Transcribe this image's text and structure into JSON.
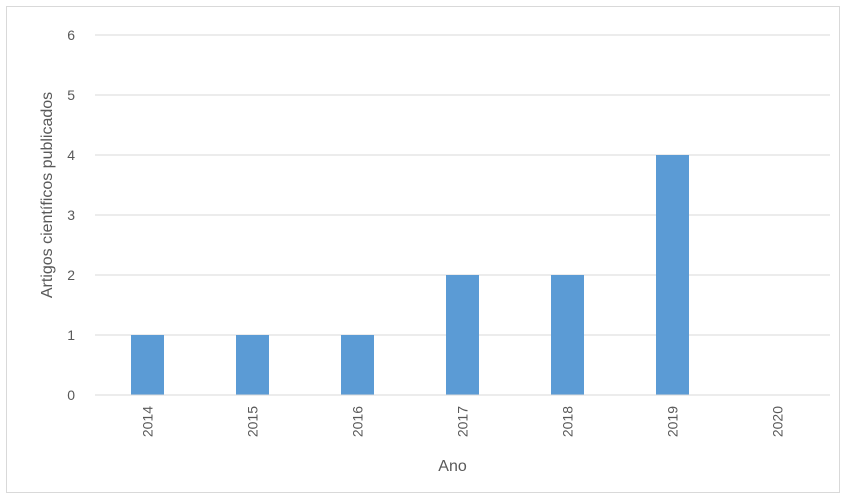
{
  "chart_data": {
    "type": "bar",
    "title": "",
    "xlabel": "Ano",
    "ylabel": "Artigos científicos publicados",
    "categories": [
      "2014",
      "2015",
      "2016",
      "2017",
      "2018",
      "2019",
      "2020"
    ],
    "values": [
      1,
      1,
      1,
      2,
      2,
      4,
      0
    ],
    "ylim": [
      0,
      6
    ],
    "yticks": [
      0,
      1,
      2,
      3,
      4,
      5,
      6
    ],
    "grid": true,
    "legend": "none",
    "colors": {
      "bar": "#5b9bd5",
      "grid": "#d9d9d9",
      "text": "#595959"
    }
  }
}
